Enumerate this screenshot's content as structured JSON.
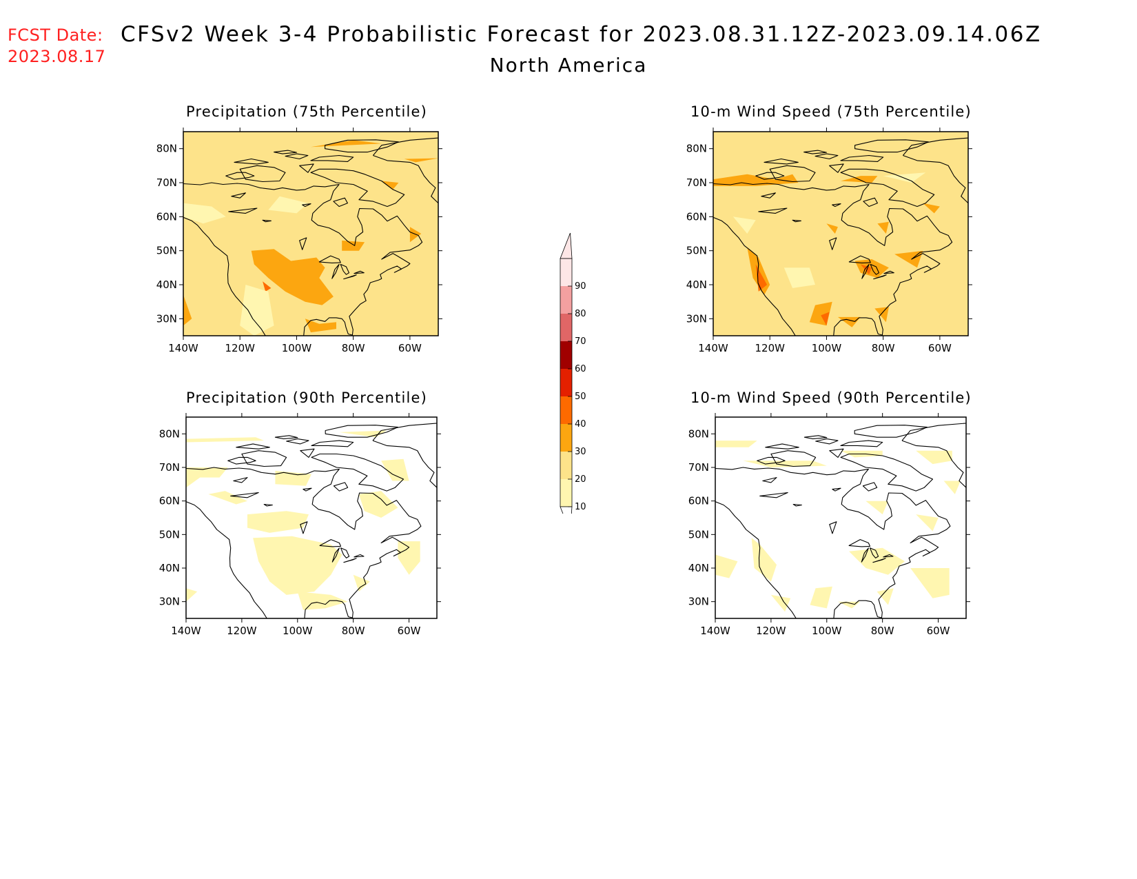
{
  "header": {
    "fcst_label": "FCST Date:",
    "fcst_date": "2023.08.17",
    "title": "CFSv2 Week 3-4 Probabilistic Forecast for 2023.08.31.12Z-2023.09.14.06Z",
    "subtitle": "North America"
  },
  "axes": {
    "lat_labels": [
      "80N",
      "70N",
      "60N",
      "50N",
      "40N",
      "30N"
    ],
    "lon_labels": [
      "140W",
      "120W",
      "100W",
      "80W",
      "60W"
    ]
  },
  "panels": [
    {
      "id": "precip75",
      "title": "Precipitation (75th Percentile)",
      "fill_level": 20
    },
    {
      "id": "wind75",
      "title": "10-m Wind Speed (75th Percentile)",
      "fill_level": 20
    },
    {
      "id": "precip90",
      "title": "Precipitation (90th Percentile)",
      "fill_level": 10
    },
    {
      "id": "wind90",
      "title": "10-m Wind Speed (90th Percentile)",
      "fill_level": 0
    }
  ],
  "colorbar": {
    "levels": [
      "10",
      "20",
      "30",
      "40",
      "50",
      "60",
      "70",
      "80",
      "90"
    ],
    "colors": [
      "#fff6b0",
      "#fde38a",
      "#fca610",
      "#fd6a00",
      "#e42000",
      "#a00000",
      "#e06666",
      "#f4a0a0",
      "#fde6e6"
    ]
  },
  "colors": {
    "fcst_text": "#ff2020",
    "cat_10_20": "#fff6b0",
    "cat_20_30": "#fde38a",
    "cat_30_40": "#fca610",
    "cat_40_50": "#fd6a00"
  }
}
